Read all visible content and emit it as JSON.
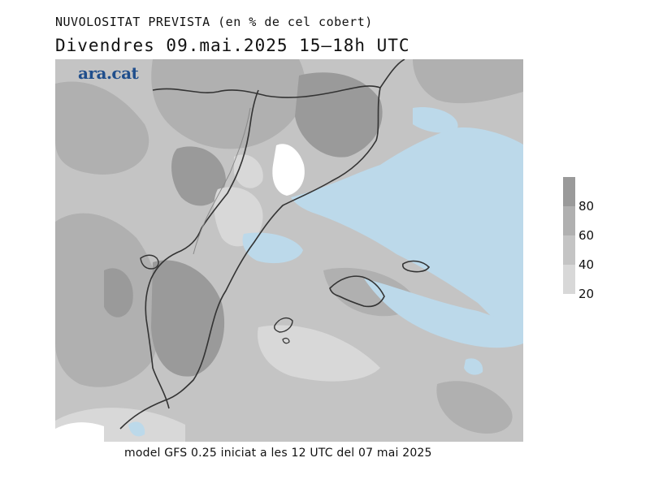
{
  "header": {
    "title": "NUVOLOSITAT PREVISTA (en % de cel cobert)",
    "subtitle": "Divendres  09.mai.2025 15—18h UTC"
  },
  "map": {
    "logo": "ara.cat",
    "sea_color": "#bcd9ea",
    "coast_color": "#333333"
  },
  "legend": {
    "levels": [
      {
        "label": "80",
        "color": "#9a9a9a"
      },
      {
        "label": "60",
        "color": "#b0b0b0"
      },
      {
        "label": "40",
        "color": "#c4c4c4"
      },
      {
        "label": "20",
        "color": "#d8d8d8"
      }
    ],
    "tick_labels": [
      "80",
      "60",
      "40",
      "20"
    ]
  },
  "footer": {
    "text": "model GFS 0.25 iniciat a les 12 UTC del 07 mai 2025"
  }
}
